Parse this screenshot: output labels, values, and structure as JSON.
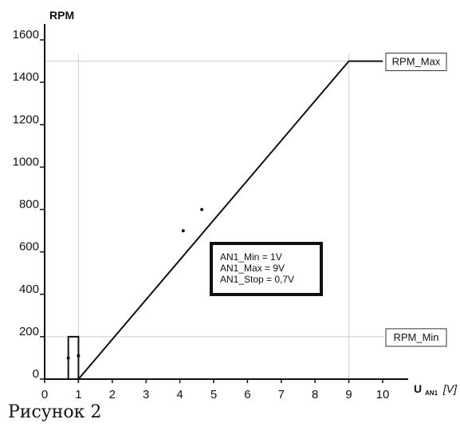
{
  "chart_data": {
    "type": "line",
    "ylabel": "RPM",
    "xlabel_main": "U",
    "xlabel_sub": "AN1",
    "xlabel_unit": "[V]",
    "xlim": [
      0,
      10
    ],
    "ylim": [
      0,
      1600
    ],
    "x_ticks": [
      "0",
      "1",
      "2",
      "3",
      "4",
      "5",
      "6",
      "7",
      "8",
      "9",
      "10"
    ],
    "y_ticks": [
      "0",
      "200",
      "400",
      "600",
      "800",
      "1000",
      "1200",
      "1400",
      "1600"
    ],
    "series": [
      {
        "x": [
          0.7,
          0.7,
          1,
          1,
          9,
          10
        ],
        "y": [
          0,
          200,
          200,
          0,
          1500,
          1500
        ]
      }
    ],
    "main_line": {
      "x": [
        1,
        9,
        10
      ],
      "y": [
        200,
        1500,
        1500
      ]
    },
    "markers": [
      {
        "x": 0.7,
        "y": 100
      },
      {
        "x": 1,
        "y": 110
      },
      {
        "x": 4.1,
        "y": 700
      },
      {
        "x": 4.65,
        "y": 800
      }
    ],
    "guides": {
      "vertical_x": [
        1,
        9
      ],
      "horizontal_y": [
        200,
        1500
      ]
    },
    "tags": [
      {
        "text": "RPM_Max",
        "y": 1500
      },
      {
        "text": "RPM_Min",
        "y": 200
      }
    ],
    "annotation": [
      "AN1_Min = 1V",
      "AN1_Max = 9V",
      "AN1_Stop = 0,7V"
    ],
    "grid": false
  },
  "caption": "Рисунок 2"
}
